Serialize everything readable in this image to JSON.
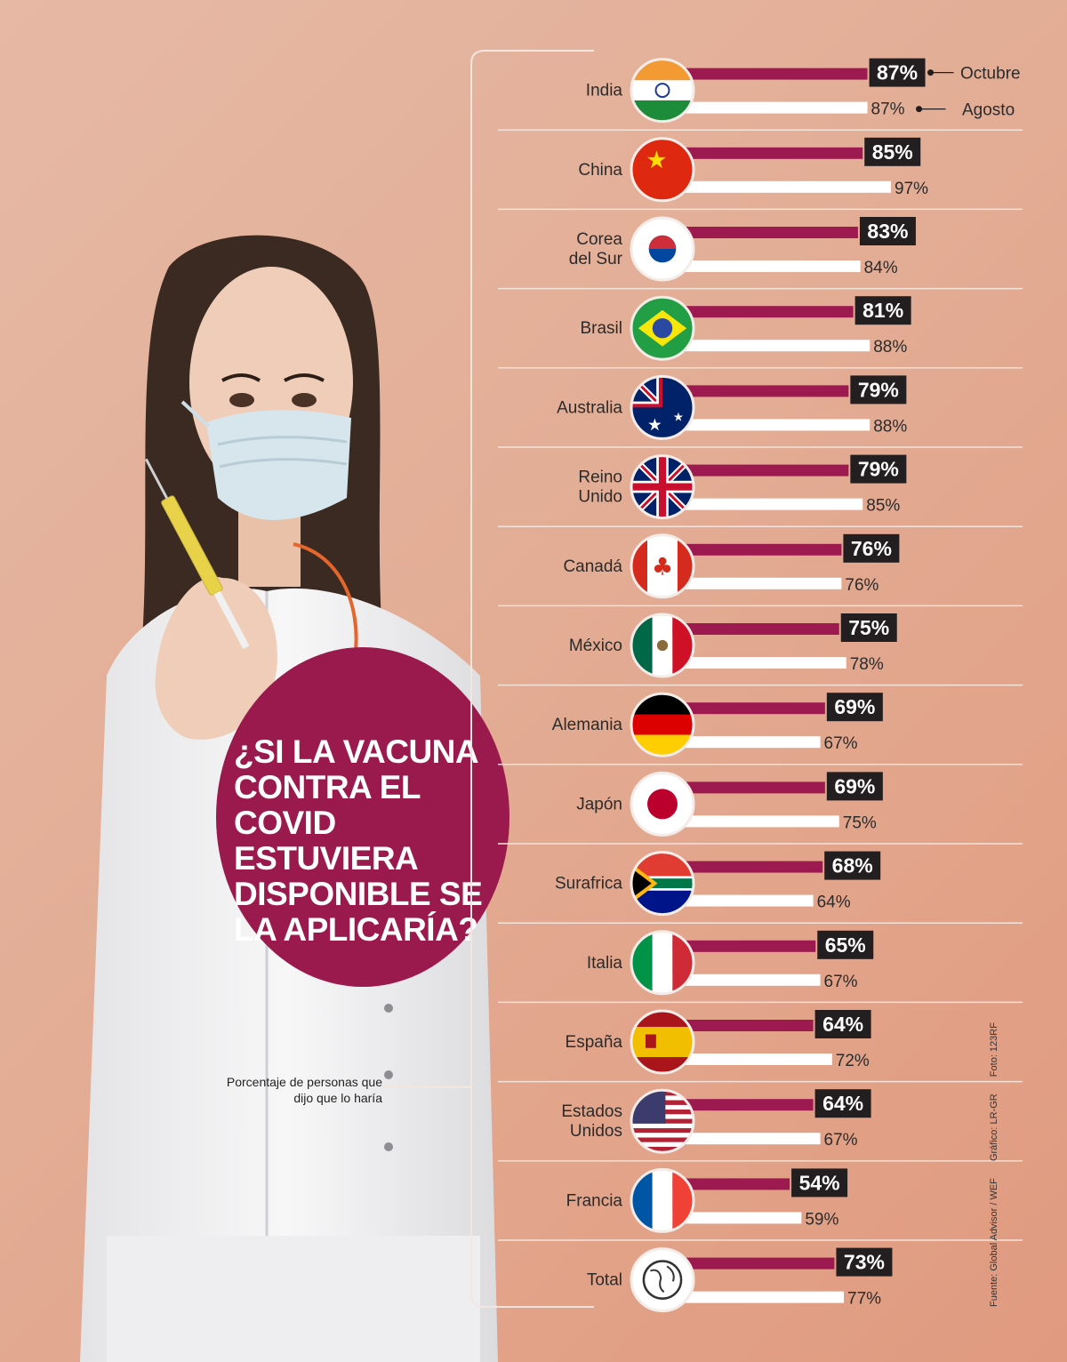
{
  "question": "¿SI LA VACUNA CONTRA EL COVID ESTUVIERA DISPONIBLE SE LA APLICARÍA?",
  "note": "Porcentaje de personas que dijo que lo haría",
  "source": {
    "source_text": "Fuente: Global Advisor / WEF",
    "graphic_text": "Gráfico: LR-GR",
    "photo_text": "Foto: 123RF"
  },
  "colors": {
    "october_bar": "#9c1a4f",
    "august_bar": "#ffffff",
    "label_box": "#231f20",
    "bubble": "#9a1a4e"
  },
  "chart_data": {
    "type": "bar",
    "orientation": "horizontal",
    "legend": [
      "Octubre",
      "Agosto"
    ],
    "legend_placement": "top-right",
    "categories": [
      "India",
      "China",
      "Corea del Sur",
      "Brasil",
      "Australia",
      "Reino Unido",
      "Canadá",
      "México",
      "Alemania",
      "Japón",
      "Surafrica",
      "Italia",
      "España",
      "Estados Unidos",
      "Francia",
      "Total"
    ],
    "display_labels": [
      "India",
      "China",
      "Corea\ndel Sur",
      "Brasil",
      "Australia",
      "Reino\nUnido",
      "Canadá",
      "México",
      "Alemania",
      "Japón",
      "Surafrica",
      "Italia",
      "España",
      "Estados\nUnidos",
      "Francia",
      "Total"
    ],
    "flags": [
      "india-flag-icon",
      "china-flag-icon",
      "south-korea-flag-icon",
      "brazil-flag-icon",
      "australia-flag-icon",
      "uk-flag-icon",
      "canada-flag-icon",
      "mexico-flag-icon",
      "germany-flag-icon",
      "japan-flag-icon",
      "south-africa-flag-icon",
      "italy-flag-icon",
      "spain-flag-icon",
      "usa-flag-icon",
      "france-flag-icon",
      "globe-icon"
    ],
    "series": [
      {
        "name": "Octubre",
        "values": [
          87,
          85,
          83,
          81,
          79,
          79,
          76,
          75,
          69,
          69,
          68,
          65,
          64,
          64,
          54,
          73
        ]
      },
      {
        "name": "Agosto",
        "values": [
          87,
          97,
          84,
          88,
          88,
          85,
          76,
          78,
          67,
          75,
          64,
          67,
          72,
          67,
          59,
          77
        ]
      }
    ],
    "value_labels_october": [
      "87%",
      "85%",
      "83%",
      "81%",
      "79%",
      "79%",
      "76%",
      "75%",
      "69%",
      "69%",
      "68%",
      "65%",
      "64%",
      "64%",
      "54%",
      "73%"
    ],
    "value_labels_august": [
      "87%",
      "97%",
      "84%",
      "88%",
      "88%",
      "85%",
      "76%",
      "78%",
      "67%",
      "75%",
      "64%",
      "67%",
      "72%",
      "67%",
      "59%",
      "77%"
    ],
    "unit": "%",
    "grid": false
  }
}
